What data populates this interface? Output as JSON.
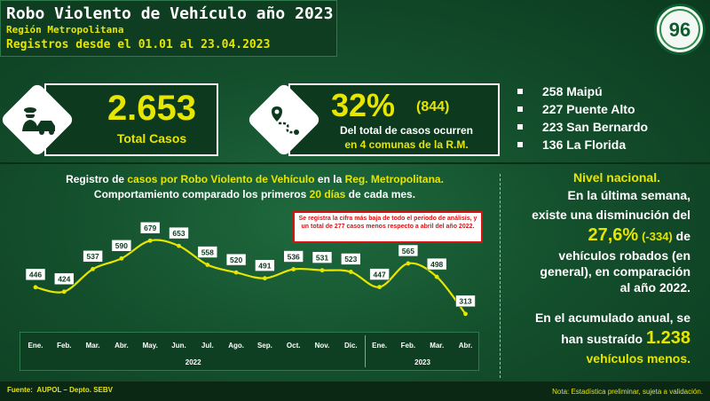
{
  "header": {
    "title": "Robo Violento de Vehículo año 2023",
    "region": "Región Metropolitana",
    "dates": "Registros desde el 01.01 al 23.04.2023"
  },
  "logo": {
    "text": "96"
  },
  "total_box": {
    "value": "2.653",
    "label": "Total Casos"
  },
  "percent_box": {
    "percent": "32%",
    "count": "(844)",
    "line1": "Del total de casos ocurren",
    "line2": "en 4 comunas de la R.M."
  },
  "comunas": [
    "258 Maipú",
    "227 Puente Alto",
    "223 San Bernardo",
    "136 La Florida"
  ],
  "chart_title": {
    "a": "Registro de ",
    "b": "casos por Robo Violento de Vehículo",
    "c": " en la ",
    "d": "Reg. Metropolitana.",
    "e": "Comportamiento comparado los primeros ",
    "f": "20 días",
    "g": " de cada mes."
  },
  "note": "Se registra la cifra más baja de todo el periodo de análisis, y un total de 277 casos menos respecto a abril del año 2022.",
  "chart_data": {
    "type": "line",
    "categories": [
      "Ene.",
      "Feb.",
      "Mar.",
      "Abr.",
      "May.",
      "Jun.",
      "Jul.",
      "Ago.",
      "Sep.",
      "Oct.",
      "Nov.",
      "Dic.",
      "Ene.",
      "Feb.",
      "Mar.",
      "Abr."
    ],
    "year_groups": [
      {
        "label": "2022",
        "count": 12
      },
      {
        "label": "2023",
        "count": 4
      }
    ],
    "values": [
      446,
      424,
      537,
      590,
      679,
      653,
      558,
      520,
      491,
      536,
      531,
      523,
      447,
      565,
      498,
      313
    ],
    "ylim": [
      250,
      720
    ],
    "line_color": "#e6e600"
  },
  "national": {
    "title": "Nivel nacional.",
    "l1": "En la última semana,",
    "l2": "existe una disminución del",
    "pct": "27,6%",
    "diff": "(-334)",
    "de": " de",
    "l4": "vehículos robados (en",
    "l5": "general), en comparación",
    "l6": "al año 2022.",
    "l7": "En el acumulado anual, se",
    "l8a": "han sustraído ",
    "l8b": "1.238",
    "l9": "vehículos menos."
  },
  "footer": {
    "source_label": "Fuente:",
    "source_value": "AUPOL – Depto. SEBV",
    "note": "Nota: Estadística preliminar, sujeta a validación."
  }
}
